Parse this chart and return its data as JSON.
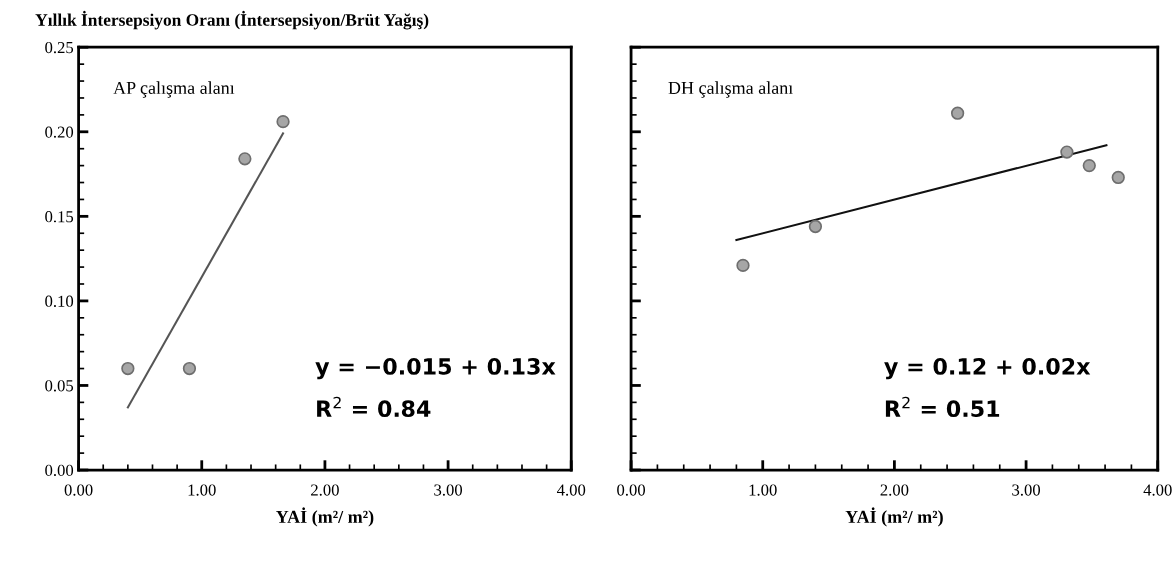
{
  "chart_data": [
    {
      "type": "scatter",
      "ylabel": "Yıllık İntersepsiyon Oranı (İntersepsiyon/Brüt Yağış)",
      "xlabel": "YAİ (m²/ m²)",
      "annotations": [
        "AP çalışma alanı",
        "y = −0.015 + 0.13x",
        "R$^{2}$ = 0.84"
      ],
      "xlim": [
        0,
        4
      ],
      "xticks": [
        {
          "value": 0,
          "label": "0.00"
        },
        {
          "value": 1,
          "label": "1.00"
        },
        {
          "value": 2,
          "label": "2.00"
        },
        {
          "value": 3,
          "label": "3.00"
        },
        {
          "value": 4,
          "label": "4.00"
        }
      ],
      "ylim": [
        0,
        0.25
      ],
      "yticks": [
        {
          "value": 0,
          "label": "0.00"
        },
        {
          "value": 0.05,
          "label": "0.05"
        },
        {
          "value": 0.1,
          "label": "0.10"
        },
        {
          "value": 0.15,
          "label": "0.15"
        },
        {
          "value": 0.2,
          "label": "0.20"
        },
        {
          "value": 0.25,
          "label": "0.25"
        }
      ],
      "grid": false,
      "legend": false,
      "series": [
        {
          "marker": "circle",
          "color": "#a6a6a6",
          "x": [
            0.4,
            0.9,
            1.35,
            1.66
          ],
          "values": [
            0.06,
            0.06,
            0.184,
            0.206
          ]
        },
        {
          "type": "line",
          "color": "#555555",
          "x": [
            0.4,
            1.66
          ],
          "values": [
            0.037,
            0.199
          ]
        }
      ]
    },
    {
      "type": "scatter",
      "xlabel": "YAİ (m²/ m²)",
      "annotations": [
        "DH çalışma alanı",
        "y = 0.12 + 0.02x",
        "R$^{2}$ = 0.51"
      ],
      "xlim": [
        0,
        4
      ],
      "xticks": [
        {
          "value": 0,
          "label": "0.00"
        },
        {
          "value": 1,
          "label": "1.00"
        },
        {
          "value": 2,
          "label": "2.00"
        },
        {
          "value": 3,
          "label": "3.00"
        },
        {
          "value": 4,
          "label": "4.00"
        }
      ],
      "ylim": [
        0,
        0.25
      ],
      "yticks": [
        {
          "value": 0,
          "label": null
        },
        {
          "value": 0.05,
          "label": null
        },
        {
          "value": 0.1,
          "label": null
        },
        {
          "value": 0.15,
          "label": null
        },
        {
          "value": 0.2,
          "label": null
        },
        {
          "value": 0.25,
          "label": null
        }
      ],
      "tick_labels": "x",
      "grid": false,
      "legend": false,
      "series": [
        {
          "marker": "circle",
          "color": "#a6a6a6",
          "x": [
            0.85,
            1.4,
            2.48,
            3.31,
            3.48,
            3.7
          ],
          "values": [
            0.121,
            0.144,
            0.211,
            0.188,
            0.18,
            0.173
          ]
        },
        {
          "type": "line",
          "color": "#111111",
          "x": [
            0.8,
            3.61
          ],
          "values": [
            0.136,
            0.192
          ]
        }
      ]
    }
  ]
}
